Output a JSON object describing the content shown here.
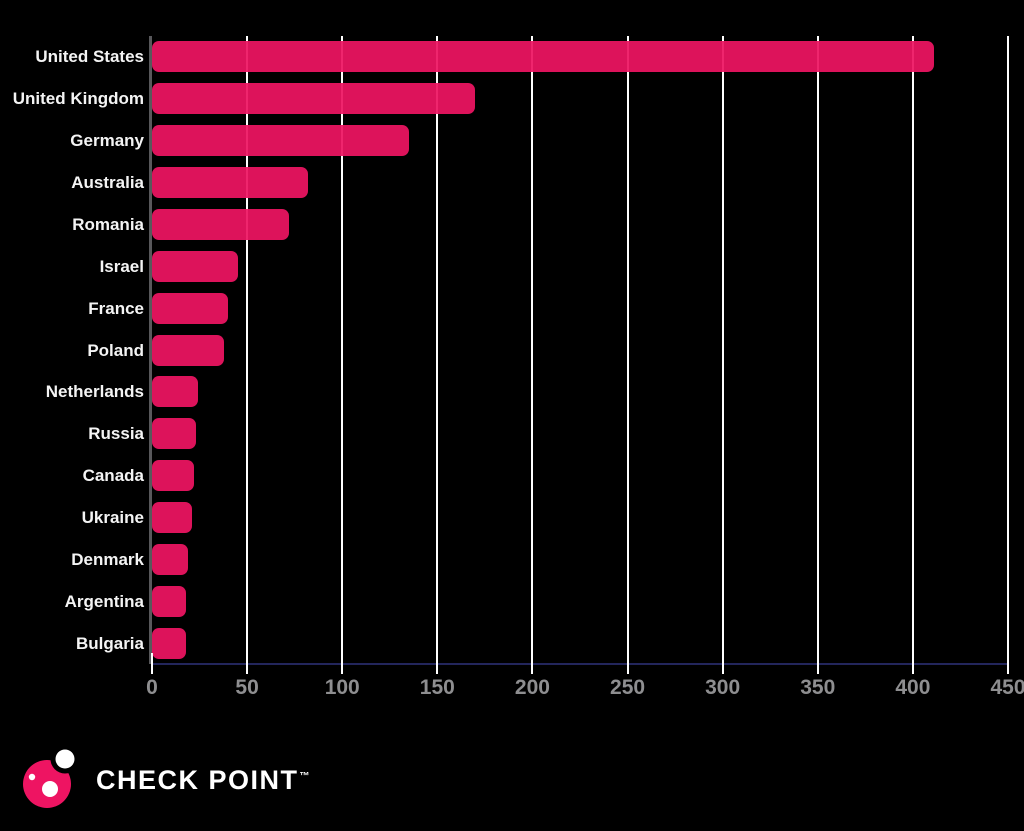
{
  "chart_data": {
    "type": "bar",
    "orientation": "horizontal",
    "title": "",
    "xlabel": "",
    "ylabel": "",
    "categories": [
      "United States",
      "United Kingdom",
      "Germany",
      "Australia",
      "Romania",
      "Israel",
      "France",
      "Poland",
      "Netherlands",
      "Russia",
      "Canada",
      "Ukraine",
      "Denmark",
      "Argentina",
      "Bulgaria"
    ],
    "values": [
      411,
      170,
      135,
      82,
      72,
      45,
      40,
      38,
      24,
      23,
      22,
      21,
      19,
      18,
      18
    ],
    "xticks": [
      0,
      50,
      100,
      150,
      200,
      250,
      300,
      350,
      400,
      450
    ],
    "xlim": [
      0,
      450
    ],
    "grid": true,
    "legend": "none",
    "bar_color": "#ee1462"
  },
  "colors": {
    "background": "#000000",
    "bar": "#ee1462",
    "gridline": "#ffffff",
    "x_axis_line": "#23265c",
    "y_axis_spine": "#58585b",
    "tick_label": "#8e8e90",
    "category_label": "#f4f4f4",
    "brand_pink": "#ee1462",
    "brand_text": "#ffffff"
  },
  "logo": {
    "brand": "CHECK POINT",
    "trademark": "™"
  }
}
